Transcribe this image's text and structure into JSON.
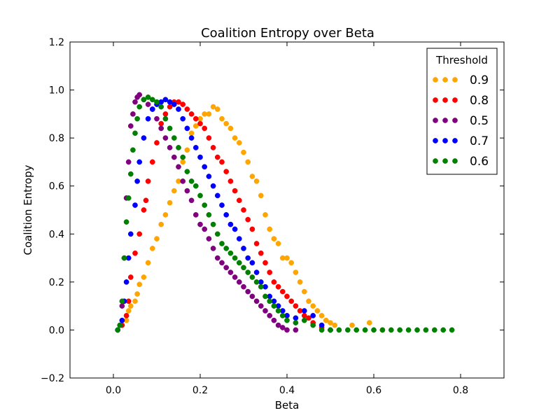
{
  "chart_data": {
    "type": "scatter",
    "title": "Coalition Entropy over Beta",
    "xlabel": "Beta",
    "ylabel": "Coalition Entropy",
    "xlim": [
      -0.1,
      0.9
    ],
    "ylim": [
      -0.2,
      1.2
    ],
    "xticks": [
      "0.0",
      "0.2",
      "0.4",
      "0.6",
      "0.8"
    ],
    "yticks": [
      "−0.2",
      "0.0",
      "0.2",
      "0.4",
      "0.6",
      "0.8",
      "1.0",
      "1.2"
    ],
    "xtick_values": [
      0.0,
      0.2,
      0.4,
      0.6,
      0.8
    ],
    "ytick_values": [
      -0.2,
      0.0,
      0.2,
      0.4,
      0.6,
      0.8,
      1.0,
      1.2
    ],
    "grid": false,
    "legend": {
      "title": "Threshold",
      "position": "top-right"
    },
    "series": [
      {
        "name": "0.9",
        "color": "#FFA500",
        "points": [
          [
            0.02,
            0.02
          ],
          [
            0.03,
            0.04
          ],
          [
            0.035,
            0.08
          ],
          [
            0.04,
            0.1
          ],
          [
            0.05,
            0.12
          ],
          [
            0.055,
            0.15
          ],
          [
            0.06,
            0.19
          ],
          [
            0.07,
            0.22
          ],
          [
            0.08,
            0.28
          ],
          [
            0.09,
            0.34
          ],
          [
            0.1,
            0.38
          ],
          [
            0.11,
            0.44
          ],
          [
            0.12,
            0.48
          ],
          [
            0.13,
            0.53
          ],
          [
            0.14,
            0.58
          ],
          [
            0.15,
            0.62
          ],
          [
            0.16,
            0.7
          ],
          [
            0.17,
            0.75
          ],
          [
            0.18,
            0.82
          ],
          [
            0.19,
            0.85
          ],
          [
            0.2,
            0.88
          ],
          [
            0.21,
            0.9
          ],
          [
            0.22,
            0.9
          ],
          [
            0.23,
            0.93
          ],
          [
            0.24,
            0.92
          ],
          [
            0.25,
            0.88
          ],
          [
            0.26,
            0.86
          ],
          [
            0.27,
            0.84
          ],
          [
            0.28,
            0.8
          ],
          [
            0.29,
            0.78
          ],
          [
            0.3,
            0.74
          ],
          [
            0.31,
            0.7
          ],
          [
            0.32,
            0.64
          ],
          [
            0.33,
            0.62
          ],
          [
            0.34,
            0.56
          ],
          [
            0.35,
            0.48
          ],
          [
            0.36,
            0.42
          ],
          [
            0.37,
            0.38
          ],
          [
            0.38,
            0.36
          ],
          [
            0.39,
            0.3
          ],
          [
            0.4,
            0.3
          ],
          [
            0.41,
            0.28
          ],
          [
            0.42,
            0.24
          ],
          [
            0.43,
            0.2
          ],
          [
            0.44,
            0.16
          ],
          [
            0.45,
            0.12
          ],
          [
            0.46,
            0.1
          ],
          [
            0.47,
            0.08
          ],
          [
            0.48,
            0.06
          ],
          [
            0.49,
            0.04
          ],
          [
            0.5,
            0.03
          ],
          [
            0.51,
            0.02
          ],
          [
            0.55,
            0.02
          ],
          [
            0.59,
            0.03
          ],
          [
            0.62,
            0.0
          ]
        ]
      },
      {
        "name": "0.8",
        "color": "#FF0000",
        "points": [
          [
            0.02,
            0.02
          ],
          [
            0.03,
            0.06
          ],
          [
            0.035,
            0.12
          ],
          [
            0.04,
            0.22
          ],
          [
            0.05,
            0.32
          ],
          [
            0.06,
            0.4
          ],
          [
            0.07,
            0.5
          ],
          [
            0.075,
            0.54
          ],
          [
            0.08,
            0.62
          ],
          [
            0.09,
            0.7
          ],
          [
            0.1,
            0.78
          ],
          [
            0.11,
            0.86
          ],
          [
            0.12,
            0.9
          ],
          [
            0.13,
            0.93
          ],
          [
            0.14,
            0.95
          ],
          [
            0.15,
            0.95
          ],
          [
            0.16,
            0.94
          ],
          [
            0.17,
            0.92
          ],
          [
            0.18,
            0.9
          ],
          [
            0.19,
            0.88
          ],
          [
            0.2,
            0.86
          ],
          [
            0.21,
            0.84
          ],
          [
            0.22,
            0.8
          ],
          [
            0.23,
            0.76
          ],
          [
            0.24,
            0.72
          ],
          [
            0.25,
            0.7
          ],
          [
            0.26,
            0.66
          ],
          [
            0.27,
            0.62
          ],
          [
            0.28,
            0.58
          ],
          [
            0.29,
            0.54
          ],
          [
            0.3,
            0.5
          ],
          [
            0.31,
            0.46
          ],
          [
            0.32,
            0.42
          ],
          [
            0.33,
            0.36
          ],
          [
            0.34,
            0.32
          ],
          [
            0.35,
            0.28
          ],
          [
            0.36,
            0.24
          ],
          [
            0.37,
            0.2
          ],
          [
            0.38,
            0.18
          ],
          [
            0.39,
            0.16
          ],
          [
            0.4,
            0.14
          ],
          [
            0.41,
            0.12
          ],
          [
            0.42,
            0.1
          ],
          [
            0.43,
            0.08
          ],
          [
            0.44,
            0.06
          ],
          [
            0.45,
            0.05
          ],
          [
            0.46,
            0.03
          ],
          [
            0.48,
            0.01
          ],
          [
            0.5,
            0.0
          ]
        ]
      },
      {
        "name": "0.5",
        "color": "#800080",
        "points": [
          [
            0.01,
            0.0
          ],
          [
            0.015,
            0.02
          ],
          [
            0.02,
            0.1
          ],
          [
            0.025,
            0.3
          ],
          [
            0.03,
            0.55
          ],
          [
            0.035,
            0.7
          ],
          [
            0.04,
            0.85
          ],
          [
            0.045,
            0.9
          ],
          [
            0.05,
            0.95
          ],
          [
            0.055,
            0.97
          ],
          [
            0.06,
            0.98
          ],
          [
            0.07,
            0.96
          ],
          [
            0.08,
            0.94
          ],
          [
            0.09,
            0.92
          ],
          [
            0.1,
            0.88
          ],
          [
            0.11,
            0.84
          ],
          [
            0.12,
            0.8
          ],
          [
            0.13,
            0.76
          ],
          [
            0.14,
            0.72
          ],
          [
            0.15,
            0.68
          ],
          [
            0.16,
            0.62
          ],
          [
            0.17,
            0.58
          ],
          [
            0.18,
            0.54
          ],
          [
            0.19,
            0.48
          ],
          [
            0.2,
            0.44
          ],
          [
            0.21,
            0.42
          ],
          [
            0.22,
            0.38
          ],
          [
            0.23,
            0.34
          ],
          [
            0.24,
            0.3
          ],
          [
            0.25,
            0.28
          ],
          [
            0.26,
            0.26
          ],
          [
            0.27,
            0.24
          ],
          [
            0.28,
            0.22
          ],
          [
            0.29,
            0.2
          ],
          [
            0.3,
            0.18
          ],
          [
            0.31,
            0.16
          ],
          [
            0.32,
            0.14
          ],
          [
            0.33,
            0.12
          ],
          [
            0.34,
            0.1
          ],
          [
            0.35,
            0.08
          ],
          [
            0.36,
            0.06
          ],
          [
            0.37,
            0.04
          ],
          [
            0.38,
            0.02
          ],
          [
            0.39,
            0.01
          ],
          [
            0.4,
            0.0
          ],
          [
            0.42,
            0.0
          ]
        ]
      },
      {
        "name": "0.7",
        "color": "#0000FF",
        "points": [
          [
            0.01,
            0.0
          ],
          [
            0.02,
            0.04
          ],
          [
            0.025,
            0.12
          ],
          [
            0.03,
            0.2
          ],
          [
            0.035,
            0.3
          ],
          [
            0.04,
            0.4
          ],
          [
            0.05,
            0.52
          ],
          [
            0.055,
            0.62
          ],
          [
            0.06,
            0.7
          ],
          [
            0.07,
            0.8
          ],
          [
            0.08,
            0.88
          ],
          [
            0.09,
            0.92
          ],
          [
            0.1,
            0.94
          ],
          [
            0.11,
            0.95
          ],
          [
            0.12,
            0.96
          ],
          [
            0.13,
            0.95
          ],
          [
            0.14,
            0.94
          ],
          [
            0.15,
            0.92
          ],
          [
            0.16,
            0.88
          ],
          [
            0.17,
            0.84
          ],
          [
            0.18,
            0.8
          ],
          [
            0.19,
            0.76
          ],
          [
            0.2,
            0.72
          ],
          [
            0.21,
            0.68
          ],
          [
            0.22,
            0.64
          ],
          [
            0.23,
            0.6
          ],
          [
            0.24,
            0.56
          ],
          [
            0.25,
            0.52
          ],
          [
            0.26,
            0.48
          ],
          [
            0.27,
            0.44
          ],
          [
            0.28,
            0.42
          ],
          [
            0.29,
            0.38
          ],
          [
            0.3,
            0.34
          ],
          [
            0.31,
            0.3
          ],
          [
            0.32,
            0.28
          ],
          [
            0.33,
            0.24
          ],
          [
            0.34,
            0.2
          ],
          [
            0.35,
            0.18
          ],
          [
            0.36,
            0.14
          ],
          [
            0.37,
            0.12
          ],
          [
            0.38,
            0.1
          ],
          [
            0.39,
            0.08
          ],
          [
            0.4,
            0.06
          ],
          [
            0.42,
            0.05
          ],
          [
            0.44,
            0.08
          ],
          [
            0.46,
            0.06
          ],
          [
            0.48,
            0.02
          ],
          [
            0.5,
            0.0
          ]
        ]
      },
      {
        "name": "0.6",
        "color": "#008000",
        "points": [
          [
            0.01,
            0.0
          ],
          [
            0.015,
            0.02
          ],
          [
            0.02,
            0.12
          ],
          [
            0.025,
            0.3
          ],
          [
            0.03,
            0.45
          ],
          [
            0.035,
            0.55
          ],
          [
            0.04,
            0.65
          ],
          [
            0.045,
            0.75
          ],
          [
            0.05,
            0.82
          ],
          [
            0.055,
            0.88
          ],
          [
            0.06,
            0.93
          ],
          [
            0.07,
            0.96
          ],
          [
            0.08,
            0.97
          ],
          [
            0.09,
            0.96
          ],
          [
            0.1,
            0.95
          ],
          [
            0.11,
            0.93
          ],
          [
            0.12,
            0.88
          ],
          [
            0.13,
            0.84
          ],
          [
            0.14,
            0.8
          ],
          [
            0.15,
            0.76
          ],
          [
            0.16,
            0.72
          ],
          [
            0.17,
            0.66
          ],
          [
            0.18,
            0.62
          ],
          [
            0.19,
            0.6
          ],
          [
            0.2,
            0.56
          ],
          [
            0.21,
            0.52
          ],
          [
            0.22,
            0.48
          ],
          [
            0.23,
            0.44
          ],
          [
            0.24,
            0.4
          ],
          [
            0.25,
            0.36
          ],
          [
            0.26,
            0.34
          ],
          [
            0.27,
            0.32
          ],
          [
            0.28,
            0.3
          ],
          [
            0.29,
            0.28
          ],
          [
            0.3,
            0.26
          ],
          [
            0.31,
            0.24
          ],
          [
            0.32,
            0.22
          ],
          [
            0.33,
            0.2
          ],
          [
            0.34,
            0.18
          ],
          [
            0.35,
            0.14
          ],
          [
            0.36,
            0.12
          ],
          [
            0.37,
            0.1
          ],
          [
            0.38,
            0.08
          ],
          [
            0.39,
            0.06
          ],
          [
            0.4,
            0.04
          ],
          [
            0.42,
            0.03
          ],
          [
            0.44,
            0.04
          ],
          [
            0.46,
            0.02
          ],
          [
            0.48,
            0.0
          ],
          [
            0.5,
            0.0
          ],
          [
            0.52,
            0.0
          ],
          [
            0.54,
            0.0
          ],
          [
            0.56,
            0.0
          ],
          [
            0.58,
            0.0
          ],
          [
            0.6,
            0.0
          ],
          [
            0.62,
            0.0
          ],
          [
            0.64,
            0.0
          ],
          [
            0.66,
            0.0
          ],
          [
            0.68,
            0.0
          ],
          [
            0.7,
            0.0
          ],
          [
            0.72,
            0.0
          ],
          [
            0.74,
            0.0
          ],
          [
            0.76,
            0.0
          ],
          [
            0.78,
            0.0
          ]
        ]
      }
    ]
  }
}
